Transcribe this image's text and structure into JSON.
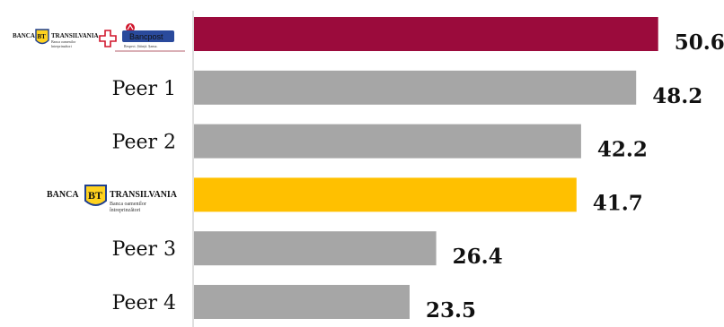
{
  "chart_data": {
    "type": "bar",
    "orientation": "horizontal",
    "categories": [
      {
        "label": "",
        "logo": "bt-bancpost-logo"
      },
      {
        "label": "Peer 1"
      },
      {
        "label": "Peer 2"
      },
      {
        "label": "",
        "logo": "bt-logo"
      },
      {
        "label": "Peer 3"
      },
      {
        "label": "Peer 4"
      }
    ],
    "values": [
      50.6,
      48.2,
      42.2,
      41.7,
      26.4,
      23.5
    ],
    "value_labels": [
      "50.6",
      "48.2",
      "42.2",
      "41.7",
      "26.4",
      "23.5"
    ],
    "bar_colors": [
      "#9B0B3C",
      "#A6A6A6",
      "#A6A6A6",
      "#FFC000",
      "#A6A6A6",
      "#A6A6A6"
    ],
    "xlim": [
      0,
      52
    ],
    "grid": false,
    "legend": "none"
  },
  "logos": {
    "bt": {
      "bank_word": "BANCA",
      "initials": "BT",
      "name": "TRANSILVANIA",
      "tagline_1": "Banca oamenilor",
      "tagline_2": "întreprinzători",
      "colors": {
        "blue": "#1F3F8F",
        "yellow": "#FFD21F"
      }
    },
    "bancpost": {
      "name": "Bancpost",
      "tagline": "Respect. Știință. Șansa.",
      "colors": {
        "cross": "#D0162C",
        "box": "#2A4A9C"
      }
    }
  }
}
